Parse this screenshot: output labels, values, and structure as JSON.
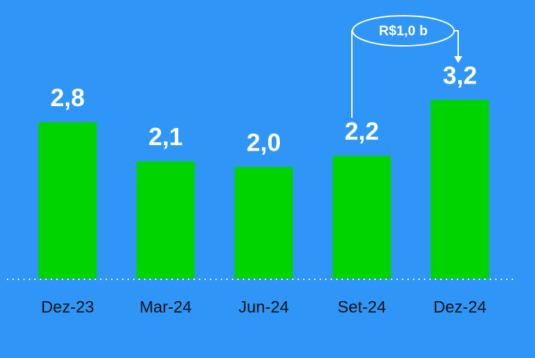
{
  "chart_data": {
    "type": "bar",
    "categories": [
      "Dez-23",
      "Mar-24",
      "Jun-24",
      "Set-24",
      "Dez-24"
    ],
    "values": [
      2.8,
      2.1,
      2.0,
      2.2,
      3.2
    ],
    "value_labels": [
      "2,8",
      "2,1",
      "2,0",
      "2,2",
      "3,2"
    ],
    "color": "#00d400",
    "annotation": "R$1,0 b"
  }
}
